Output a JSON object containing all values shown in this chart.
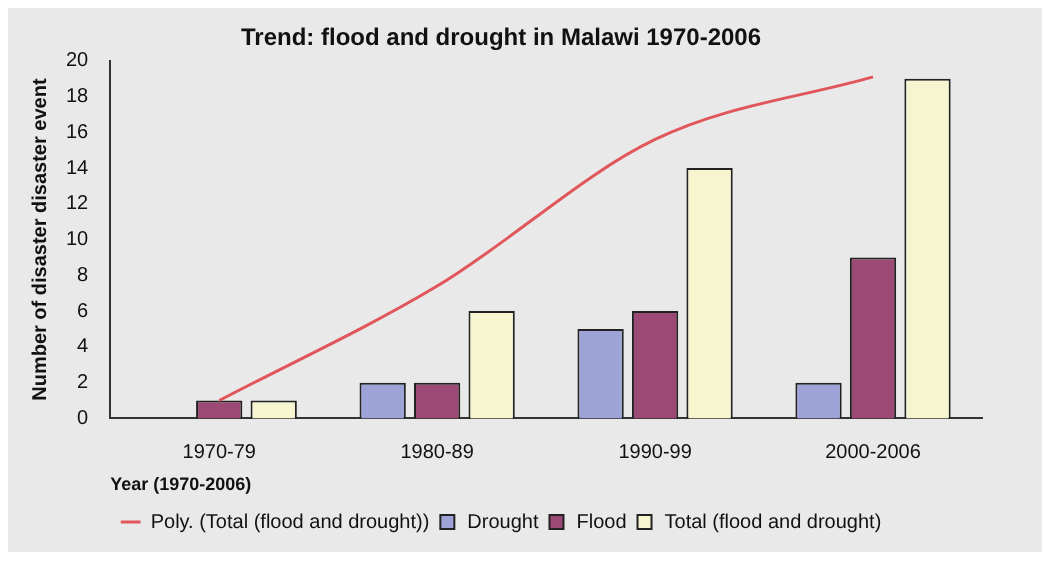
{
  "chart_data": {
    "type": "bar",
    "title": "Trend: flood and drought in Malawi 1970-2006",
    "xlabel": "Year (1970-2006)",
    "ylabel": "Number of disaster disaster event",
    "categories": [
      "1970-79",
      "1980-89",
      "1990-99",
      "2000-2006"
    ],
    "series": [
      {
        "name": "Drought",
        "color": "#9da3d6",
        "values": [
          0,
          2,
          5,
          2
        ]
      },
      {
        "name": "Flood",
        "color": "#9c4a75",
        "values": [
          1,
          2,
          6,
          9
        ]
      },
      {
        "name": "Total (flood and drought)",
        "color": "#f6f5d0",
        "values": [
          1,
          6,
          14,
          19
        ]
      },
      {
        "name": "Poly. (Total (flood and drought))",
        "type": "line",
        "color": "#e0565a",
        "values": [
          1,
          7.4,
          15.6,
          19.1
        ]
      }
    ],
    "ylim": [
      0,
      20
    ],
    "yticks": [
      0,
      2,
      4,
      6,
      8,
      10,
      12,
      14,
      16,
      18,
      20
    ],
    "grid": false,
    "legend": "bottom",
    "marker": "none"
  }
}
